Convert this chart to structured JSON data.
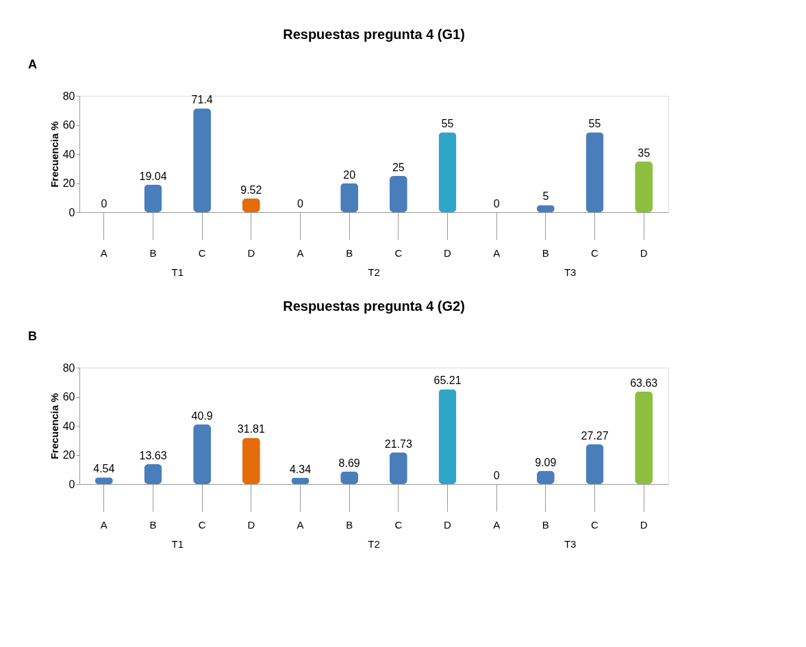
{
  "chart_data": [
    {
      "type": "bar",
      "title": "Respuestas pregunta 4 (G1)",
      "ylabel": "Frecuencia %",
      "categories": [
        "A",
        "B",
        "C",
        "D",
        "A",
        "B",
        "C",
        "D",
        "A",
        "B",
        "C",
        "D"
      ],
      "values": [
        0,
        19.04,
        71.4,
        9.52,
        0,
        20,
        25,
        55,
        0,
        5,
        55,
        35
      ],
      "colors": [
        "#4a7ebb",
        "#4a7ebb",
        "#4a7ebb",
        "#e46c0a",
        "#4a7ebb",
        "#4a7ebb",
        "#4a7ebb",
        "#2ea6c8",
        "#4a7ebb",
        "#4a7ebb",
        "#4a7ebb",
        "#8cbf3f"
      ],
      "ylim": [
        0,
        80
      ],
      "yticks": [
        0,
        20,
        40,
        60,
        80
      ],
      "grid": false,
      "data_labels": true,
      "annotations": [
        "A",
        "T1",
        "T2",
        "T3"
      ]
    },
    {
      "type": "bar",
      "title": "Respuestas pregunta 4 (G2)",
      "ylabel": "Frecuencia %",
      "categories": [
        "A",
        "B",
        "C",
        "D",
        "A",
        "B",
        "C",
        "D",
        "A",
        "B",
        "C",
        "D"
      ],
      "values": [
        4.54,
        13.63,
        40.9,
        31.81,
        4.34,
        8.69,
        21.73,
        65.21,
        0,
        9.09,
        27.27,
        63.63
      ],
      "colors": [
        "#4a7ebb",
        "#4a7ebb",
        "#4a7ebb",
        "#e46c0a",
        "#4a7ebb",
        "#4a7ebb",
        "#4a7ebb",
        "#2ea6c8",
        "#4a7ebb",
        "#4a7ebb",
        "#4a7ebb",
        "#8cbf3f"
      ],
      "ylim": [
        0,
        80
      ],
      "yticks": [
        0,
        20,
        40,
        60,
        80
      ],
      "grid": false,
      "data_labels": true,
      "annotations": [
        "B",
        "T1",
        "T2",
        "T3"
      ]
    }
  ]
}
